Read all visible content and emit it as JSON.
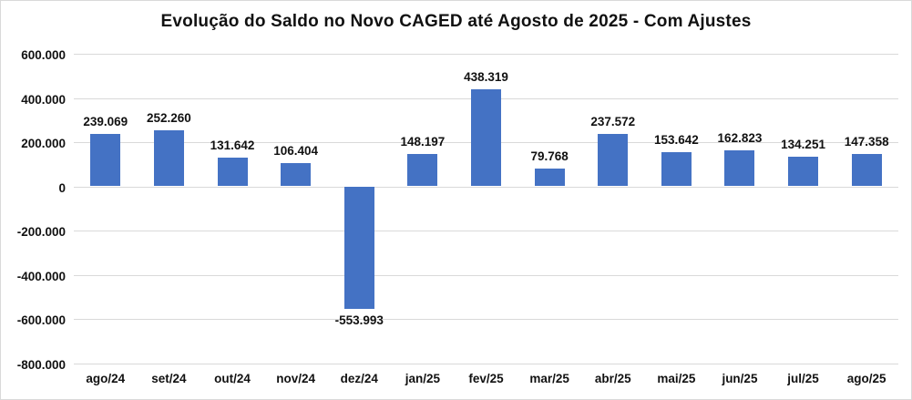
{
  "chart_data": {
    "type": "bar",
    "title": "Evolução do Saldo no Novo CAGED até Agosto de 2025 - Com Ajustes",
    "categories": [
      "ago/24",
      "set/24",
      "out/24",
      "nov/24",
      "dez/24",
      "jan/25",
      "fev/25",
      "mar/25",
      "abr/25",
      "mai/25",
      "jun/25",
      "jul/25",
      "ago/25"
    ],
    "values": [
      239069,
      252260,
      131642,
      106404,
      -553993,
      148197,
      438319,
      79768,
      237572,
      153642,
      162823,
      134251,
      147358
    ],
    "value_labels": [
      "239.069",
      "252.260",
      "131.642",
      "106.404",
      "-553.993",
      "148.197",
      "438.319",
      "79.768",
      "237.572",
      "153.642",
      "162.823",
      "134.251",
      "147.358"
    ],
    "y_ticks": [
      600000,
      400000,
      200000,
      0,
      -200000,
      -400000,
      -600000,
      -800000
    ],
    "y_tick_labels": [
      "600.000",
      "400.000",
      "200.000",
      "0",
      "-200.000",
      "-400.000",
      "-600.000",
      "-800.000"
    ],
    "ylim": [
      -800000,
      600000
    ],
    "xlabel": "",
    "ylabel": "",
    "grid": "horizontal",
    "legend": "none",
    "bar_color": "#4472c4",
    "gridline_color": "#d9d9d9"
  }
}
